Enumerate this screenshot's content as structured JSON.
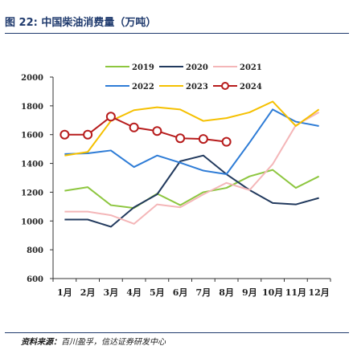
{
  "header": {
    "figure_title": "图 22:  中国柴油消费量（万吨）"
  },
  "footer": {
    "source_label": "资料来源：",
    "source_text": "百川盈孚，信达证券研发中心"
  },
  "chart_data": {
    "type": "line",
    "title": "",
    "xlabel": "",
    "ylabel": "",
    "categories": [
      "1月",
      "2月",
      "3月",
      "4月",
      "5月",
      "6月",
      "7月",
      "8月",
      "9月",
      "10月",
      "11月",
      "12月"
    ],
    "ylim": [
      600,
      2000
    ],
    "yticks": [
      600,
      800,
      1000,
      1200,
      1400,
      1600,
      1800,
      2000
    ],
    "grid": false,
    "legend_position": "top-right",
    "series": [
      {
        "name": "2019",
        "color": "#8dc63f",
        "marker": "none",
        "values": [
          1210,
          1235,
          1110,
          1090,
          1190,
          1110,
          1200,
          1230,
          1310,
          1355,
          1230,
          1310
        ]
      },
      {
        "name": "2020",
        "color": "#223a5e",
        "marker": "none",
        "values": [
          1010,
          1010,
          960,
          1095,
          1185,
          1415,
          1455,
          1325,
          1215,
          1125,
          1115,
          1160
        ]
      },
      {
        "name": "2021",
        "color": "#f4b6b8",
        "marker": "none",
        "values": [
          1065,
          1065,
          1040,
          980,
          1115,
          1095,
          1185,
          1265,
          1215,
          1395,
          1665,
          1755
        ]
      },
      {
        "name": "2022",
        "color": "#2e7cd6",
        "marker": "none",
        "values": [
          1465,
          1470,
          1490,
          1375,
          1455,
          1405,
          1350,
          1325,
          1545,
          1775,
          1690,
          1660
        ]
      },
      {
        "name": "2023",
        "color": "#f5c000",
        "marker": "none",
        "values": [
          1455,
          1480,
          1695,
          1770,
          1790,
          1775,
          1695,
          1715,
          1755,
          1830,
          1660,
          1775
        ]
      },
      {
        "name": "2024",
        "color": "#b71c1c",
        "marker": "circle",
        "values": [
          1600,
          1600,
          1725,
          1650,
          1625,
          1575,
          1570,
          1550,
          null,
          null,
          null,
          null
        ]
      }
    ]
  }
}
